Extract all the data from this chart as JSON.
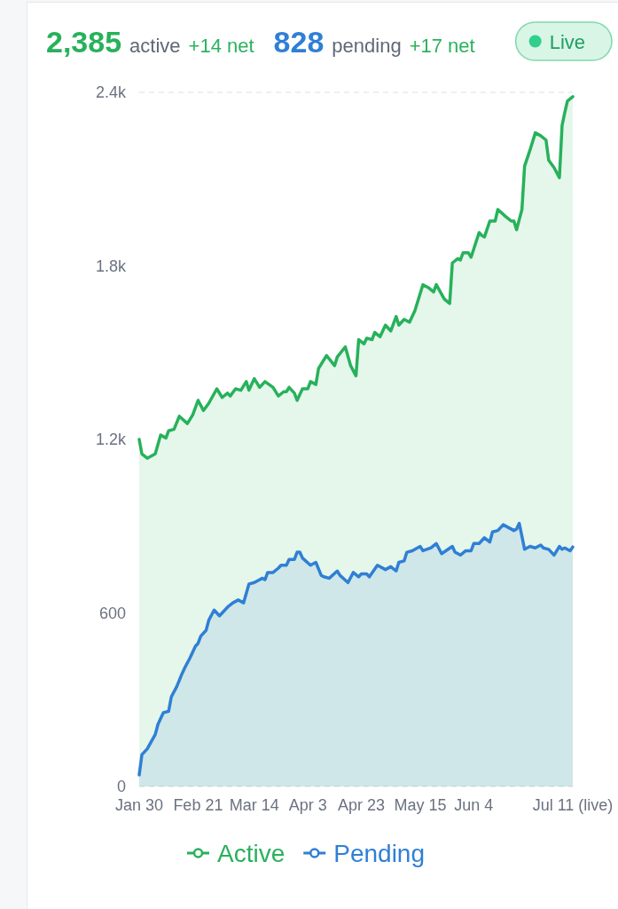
{
  "chart_data": {
    "type": "area",
    "annotations": [
      "2,385",
      "active",
      "+14 net",
      "828",
      "pending",
      "+17 net",
      "Live"
    ],
    "xlim": [
      "--01-30",
      "--07-11"
    ],
    "xticks": [
      {
        "value": "--01-30",
        "label": "Jan 30"
      },
      {
        "value": "--02-21",
        "label": "Feb 21"
      },
      {
        "value": "--03-14",
        "label": "Mar 14"
      },
      {
        "value": "--04-03",
        "label": "Apr 3"
      },
      {
        "value": "--04-23",
        "label": "Apr 23"
      },
      {
        "value": "--05-15",
        "label": "May 15"
      },
      {
        "value": "--06-04",
        "label": "Jun 4"
      },
      {
        "value": "--07-11",
        "label": "Jul 11 (live)"
      }
    ],
    "ylim": [
      0,
      2400
    ],
    "yticks": [
      0,
      600,
      {
        "value": 1200,
        "label": "1.2k"
      },
      {
        "value": 1800,
        "label": "1.8k"
      },
      {
        "value": 2400,
        "label": "2.4k"
      }
    ],
    "legend": "bottom",
    "series": [
      {
        "name": "Active",
        "color": "#27b15b",
        "x": [
          "--01-30",
          "--01-31",
          "--02-02",
          "--02-05",
          "--02-07",
          "--02-09",
          "--02-10",
          "--02-12",
          "--02-14",
          "--02-17",
          "--02-19",
          "--02-21",
          "--02-23",
          "--02-25",
          "--02-28",
          "--03-02",
          "--03-04",
          "--03-05",
          "--03-07",
          "--03-09",
          "--03-11",
          "--03-12",
          "--03-14",
          "--03-16",
          "--03-18",
          "--03-21",
          "--03-23",
          "--03-25",
          "--03-26",
          "--03-27",
          "--03-29",
          "--03-30",
          "--04-01",
          "--04-03",
          "--04-04",
          "--04-06",
          "--04-07",
          "--04-10",
          "--04-13",
          "--04-14",
          "--04-17",
          "--04-19",
          "--04-21",
          "--04-22",
          "--04-24",
          "--04-25",
          "--04-27",
          "--04-28",
          "--04-30",
          "--05-02",
          "--05-04",
          "--05-06",
          "--05-07",
          "--05-09",
          "--05-11",
          "--05-13",
          "--05-16",
          "--05-18",
          "--05-20",
          "--05-21",
          "--05-24",
          "--05-26",
          "--05-27",
          "--05-29",
          "--05-30",
          "--05-31",
          "--06-02",
          "--06-03",
          "--06-06",
          "--06-07",
          "--06-08",
          "--06-10",
          "--06-12",
          "--06-13",
          "--06-16",
          "--06-18",
          "--06-19",
          "--06-20",
          "--06-22",
          "--06-23",
          "--06-25",
          "--06-27",
          "--06-29",
          "--07-01",
          "--07-02",
          "--07-04",
          "--07-06",
          "--07-07",
          "--07-08",
          "--07-09",
          "--07-11"
        ],
        "values": [
          1200,
          1150,
          1135,
          1150,
          1215,
          1205,
          1230,
          1235,
          1280,
          1255,
          1285,
          1335,
          1300,
          1325,
          1375,
          1345,
          1360,
          1350,
          1375,
          1370,
          1400,
          1370,
          1410,
          1380,
          1400,
          1380,
          1350,
          1365,
          1365,
          1380,
          1360,
          1335,
          1375,
          1375,
          1400,
          1390,
          1445,
          1490,
          1455,
          1485,
          1520,
          1455,
          1420,
          1545,
          1530,
          1550,
          1545,
          1570,
          1555,
          1595,
          1575,
          1625,
          1595,
          1615,
          1605,
          1645,
          1735,
          1725,
          1710,
          1735,
          1685,
          1670,
          1810,
          1825,
          1820,
          1845,
          1845,
          1830,
          1915,
          1905,
          1900,
          1955,
          1955,
          1995,
          1970,
          1955,
          1955,
          1925,
          1995,
          2145,
          2200,
          2260,
          2250,
          2235,
          2165,
          2140,
          2105,
          2285,
          2330,
          2370,
          2385
        ]
      },
      {
        "name": "Pending",
        "color": "#2f7fd5",
        "x": [
          "--01-30",
          "--01-31",
          "--02-02",
          "--02-05",
          "--02-06",
          "--02-08",
          "--02-10",
          "--02-11",
          "--02-13",
          "--02-15",
          "--02-16",
          "--02-18",
          "--02-20",
          "--02-21",
          "--02-22",
          "--02-24",
          "--02-25",
          "--02-27",
          "--03-01",
          "--03-03",
          "--03-04",
          "--03-06",
          "--03-08",
          "--03-10",
          "--03-12",
          "--03-14",
          "--03-16",
          "--03-17",
          "--03-18",
          "--03-19",
          "--03-21",
          "--03-23",
          "--03-24",
          "--03-26",
          "--03-27",
          "--03-29",
          "--03-30",
          "--03-31",
          "--04-01",
          "--04-04",
          "--04-06",
          "--04-08",
          "--04-09",
          "--04-11",
          "--04-14",
          "--04-15",
          "--04-18",
          "--04-20",
          "--04-22",
          "--04-23",
          "--04-25",
          "--04-26",
          "--04-29",
          "--05-02",
          "--05-04",
          "--05-06",
          "--05-07",
          "--05-09",
          "--05-10",
          "--05-12",
          "--05-15",
          "--05-16",
          "--05-19",
          "--05-21",
          "--05-23",
          "--05-27",
          "--05-28",
          "--05-30",
          "--06-01",
          "--06-03",
          "--06-04",
          "--06-06",
          "--06-08",
          "--06-10",
          "--06-11",
          "--06-13",
          "--06-15",
          "--06-17",
          "--06-19",
          "--06-20",
          "--06-21",
          "--06-23",
          "--06-25",
          "--06-27",
          "--06-29",
          "--06-30",
          "--07-02",
          "--07-04",
          "--07-06",
          "--07-07",
          "--07-08",
          "--07-10",
          "--07-11"
        ],
        "values": [
          40,
          110,
          130,
          180,
          215,
          255,
          260,
          310,
          345,
          390,
          410,
          445,
          485,
          495,
          520,
          540,
          575,
          610,
          590,
          610,
          620,
          635,
          645,
          635,
          700,
          705,
          715,
          720,
          715,
          740,
          740,
          755,
          765,
          765,
          785,
          785,
          810,
          810,
          790,
          765,
          775,
          730,
          725,
          720,
          745,
          730,
          705,
          740,
          725,
          735,
          735,
          725,
          765,
          750,
          760,
          745,
          775,
          780,
          810,
          815,
          830,
          815,
          825,
          840,
          805,
          830,
          810,
          800,
          815,
          815,
          840,
          840,
          860,
          845,
          880,
          885,
          905,
          895,
          885,
          890,
          910,
          820,
          830,
          825,
          835,
          825,
          820,
          800,
          830,
          820,
          825,
          815,
          828
        ]
      }
    ]
  }
}
